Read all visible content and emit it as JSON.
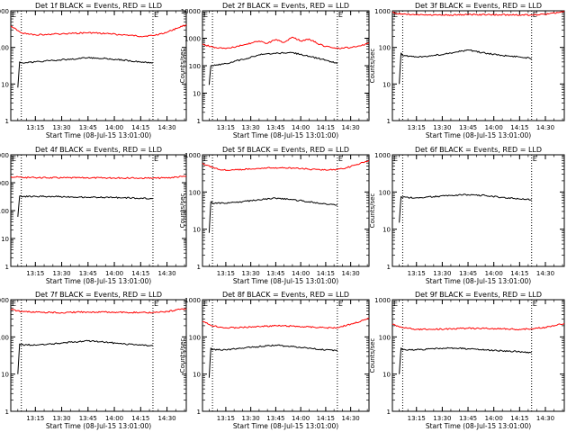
{
  "figure": {
    "panels": [
      {
        "title": "Det 1f BLACK = Events, RED = LLD",
        "ylabel": "Counts/sec",
        "xlabel": "Start Time (08-Jul-15 13:01:00)",
        "corner_marks": [
          "E",
          "E"
        ]
      },
      {
        "title": "Det 2f BLACK = Events, RED = LLD",
        "ylabel": "Counts/sec",
        "xlabel": "Start Time (08-Jul-15 13:01:00)",
        "corner_marks": [
          "E",
          "E"
        ]
      },
      {
        "title": "Det 3f BLACK = Events, RED = LLD",
        "ylabel": "Counts/sec",
        "xlabel": "Start Time (08-Jul-15 13:01:00)",
        "corner_marks": [
          "E",
          "E"
        ]
      },
      {
        "title": "Det 4f BLACK = Events, RED = LLD",
        "ylabel": "Counts/sec",
        "xlabel": "Start Time (08-Jul-15 13:01:00)",
        "corner_marks": [
          "E",
          "E"
        ]
      },
      {
        "title": "Det 5f BLACK = Events, RED = LLD",
        "ylabel": "Counts/sec",
        "xlabel": "Start Time (08-Jul-15 13:01:00)",
        "corner_marks": [
          "E",
          "E"
        ]
      },
      {
        "title": "Det 6f BLACK = Events, RED = LLD",
        "ylabel": "Counts/sec",
        "xlabel": "Start Time (08-Jul-15 13:01:00)",
        "corner_marks": [
          "E",
          "E"
        ]
      },
      {
        "title": "Det 7f BLACK = Events, RED = LLD",
        "ylabel": "Counts/sec",
        "xlabel": "Start Time (08-Jul-15 13:01:00)",
        "corner_marks": [
          "E",
          "E"
        ]
      },
      {
        "title": "Det 8f BLACK = Events, RED = LLD",
        "ylabel": "Counts/sec",
        "xlabel": "Start Time (08-Jul-15 13:01:00)",
        "corner_marks": [
          "E",
          "E"
        ]
      },
      {
        "title": "Det 9f BLACK = Events, RED = LLD",
        "ylabel": "Counts/sec",
        "xlabel": "Start Time (08-Jul-15 13:01:00)",
        "corner_marks": [
          "E",
          "E"
        ]
      }
    ]
  },
  "chart_data": [
    {
      "type": "line",
      "title": "Det 1f BLACK = Events, RED = LLD",
      "ylabel": "Counts/sec",
      "xlabel": "Start Time (08-Jul-15 13:01:00)",
      "yscale": "log",
      "ylim": [
        1,
        1000
      ],
      "xlim": [
        "13:01",
        "14:41"
      ],
      "yticks": [
        "1",
        "10",
        "100",
        "1000"
      ],
      "xticks": [
        "13:15",
        "13:30",
        "13:45",
        "14:00",
        "14:15",
        "14:30"
      ],
      "vlines": [
        "13:07",
        "14:22"
      ],
      "series": [
        {
          "color": "#ff0000",
          "x": [
            "13:01",
            "13:07",
            "13:15",
            "13:25",
            "13:35",
            "13:45",
            "13:55",
            "14:05",
            "14:15",
            "14:22",
            "14:30",
            "14:41"
          ],
          "y": [
            380,
            250,
            220,
            230,
            240,
            250,
            240,
            220,
            200,
            210,
            260,
            420
          ]
        },
        {
          "color": "#000000",
          "x": [
            "13:05",
            "13:06",
            "13:07",
            "13:15",
            "13:25",
            "13:35",
            "13:45",
            "13:55",
            "14:05",
            "14:15",
            "14:22"
          ],
          "y": [
            8,
            40,
            38,
            40,
            44,
            48,
            52,
            50,
            45,
            40,
            38
          ]
        }
      ]
    },
    {
      "type": "line",
      "title": "Det 2f BLACK = Events, RED = LLD",
      "ylabel": "Counts/sec",
      "xlabel": "Start Time (08-Jul-15 13:01:00)",
      "yscale": "log",
      "ylim": [
        1,
        10000
      ],
      "xlim": [
        "13:01",
        "14:41"
      ],
      "yticks": [
        "1",
        "10",
        "100",
        "1000",
        "10000"
      ],
      "xticks": [
        "13:15",
        "13:30",
        "13:45",
        "14:00",
        "14:15",
        "14:30"
      ],
      "vlines": [
        "13:07",
        "14:22"
      ],
      "series": [
        {
          "color": "#ff0000",
          "x": [
            "13:01",
            "13:07",
            "13:15",
            "13:25",
            "13:35",
            "13:40",
            "13:45",
            "13:50",
            "13:55",
            "14:00",
            "14:05",
            "14:10",
            "14:15",
            "14:22",
            "14:30",
            "14:41"
          ],
          "y": [
            600,
            480,
            420,
            550,
            800,
            650,
            900,
            700,
            1100,
            800,
            950,
            650,
            500,
            430,
            460,
            650
          ]
        },
        {
          "color": "#000000",
          "x": [
            "13:05",
            "13:06",
            "13:07",
            "13:15",
            "13:25",
            "13:35",
            "13:45",
            "13:55",
            "14:05",
            "14:15",
            "14:22"
          ],
          "y": [
            20,
            100,
            100,
            120,
            170,
            250,
            280,
            300,
            220,
            160,
            120
          ]
        }
      ]
    },
    {
      "type": "line",
      "title": "Det 3f BLACK = Events, RED = LLD",
      "ylabel": "Counts/sec",
      "xlabel": "Start Time (08-Jul-15 13:01:00)",
      "yscale": "log",
      "ylim": [
        1,
        1000
      ],
      "xlim": [
        "13:01",
        "14:41"
      ],
      "yticks": [
        "1",
        "10",
        "100",
        "1000"
      ],
      "xticks": [
        "13:15",
        "13:30",
        "13:45",
        "14:00",
        "14:15",
        "14:30"
      ],
      "vlines": [
        "13:07",
        "14:22"
      ],
      "series": [
        {
          "color": "#ff0000",
          "x": [
            "13:01",
            "13:07",
            "13:15",
            "13:30",
            "13:45",
            "14:00",
            "14:15",
            "14:22",
            "14:30",
            "14:41"
          ],
          "y": [
            900,
            800,
            780,
            760,
            790,
            780,
            770,
            760,
            800,
            950
          ]
        },
        {
          "color": "#000000",
          "x": [
            "13:05",
            "13:06",
            "13:07",
            "13:15",
            "13:25",
            "13:35",
            "13:45",
            "13:55",
            "14:05",
            "14:15",
            "14:22"
          ],
          "y": [
            10,
            70,
            60,
            55,
            60,
            70,
            85,
            70,
            60,
            55,
            50
          ]
        }
      ]
    },
    {
      "type": "line",
      "title": "Det 4f BLACK = Events, RED = LLD",
      "ylabel": "Counts/sec",
      "xlabel": "Start Time (08-Jul-15 13:01:00)",
      "yscale": "log",
      "ylim": [
        1,
        10000
      ],
      "xlim": [
        "13:01",
        "14:41"
      ],
      "yticks": [
        "1",
        "10",
        "100",
        "1000",
        "10000"
      ],
      "xticks": [
        "13:15",
        "13:30",
        "13:45",
        "14:00",
        "14:15",
        "14:30"
      ],
      "vlines": [
        "13:07",
        "14:22"
      ],
      "series": [
        {
          "color": "#ff0000",
          "x": [
            "13:01",
            "13:07",
            "13:15",
            "13:30",
            "13:45",
            "14:00",
            "14:15",
            "14:22",
            "14:30",
            "14:41"
          ],
          "y": [
            1650,
            1550,
            1520,
            1500,
            1500,
            1480,
            1460,
            1450,
            1500,
            1700
          ]
        },
        {
          "color": "#000000",
          "x": [
            "13:05",
            "13:06",
            "13:07",
            "13:15",
            "13:25",
            "13:35",
            "13:45",
            "13:55",
            "14:05",
            "14:15",
            "14:22"
          ],
          "y": [
            60,
            330,
            320,
            320,
            320,
            310,
            300,
            300,
            290,
            280,
            270
          ]
        }
      ]
    },
    {
      "type": "line",
      "title": "Det 5f BLACK = Events, RED = LLD",
      "ylabel": "Counts/sec",
      "xlabel": "Start Time (08-Jul-15 13:01:00)",
      "yscale": "log",
      "ylim": [
        1,
        1000
      ],
      "xlim": [
        "13:01",
        "14:41"
      ],
      "yticks": [
        "1",
        "10",
        "100",
        "1000"
      ],
      "xticks": [
        "13:15",
        "13:30",
        "13:45",
        "14:00",
        "14:15",
        "14:30"
      ],
      "vlines": [
        "13:07",
        "14:22"
      ],
      "series": [
        {
          "color": "#ff0000",
          "x": [
            "13:01",
            "13:07",
            "13:15",
            "13:25",
            "13:35",
            "13:45",
            "13:55",
            "14:05",
            "14:15",
            "14:22",
            "14:30",
            "14:41"
          ],
          "y": [
            600,
            450,
            380,
            400,
            430,
            450,
            440,
            410,
            390,
            400,
            480,
            700
          ]
        },
        {
          "color": "#000000",
          "x": [
            "13:05",
            "13:06",
            "13:07",
            "13:15",
            "13:25",
            "13:35",
            "13:45",
            "13:55",
            "14:05",
            "14:15",
            "14:22"
          ],
          "y": [
            8,
            55,
            50,
            50,
            55,
            62,
            68,
            62,
            55,
            48,
            45
          ]
        }
      ]
    },
    {
      "type": "line",
      "title": "Det 6f BLACK = Events, RED = LLD",
      "ylabel": "Counts/sec",
      "xlabel": "Start Time (08-Jul-15 13:01:00)",
      "yscale": "log",
      "ylim": [
        1,
        1000
      ],
      "xlim": [
        "13:01",
        "14:41"
      ],
      "yticks": [
        "1",
        "10",
        "100",
        "1000"
      ],
      "xticks": [
        "13:15",
        "13:30",
        "13:45",
        "14:00",
        "14:15",
        "14:30"
      ],
      "vlines": [
        "13:07",
        "14:22"
      ],
      "series": [
        {
          "color": "#000000",
          "x": [
            "13:05",
            "13:06",
            "13:07",
            "13:15",
            "13:25",
            "13:35",
            "13:45",
            "13:55",
            "14:05",
            "14:15",
            "14:22"
          ],
          "y": [
            15,
            75,
            72,
            70,
            75,
            80,
            85,
            80,
            72,
            65,
            62
          ]
        }
      ]
    },
    {
      "type": "line",
      "title": "Det 7f BLACK = Events, RED = LLD",
      "ylabel": "Counts/sec",
      "xlabel": "Start Time (08-Jul-15 13:01:00)",
      "yscale": "log",
      "ylim": [
        1,
        1000
      ],
      "xlim": [
        "13:01",
        "14:41"
      ],
      "yticks": [
        "1",
        "10",
        "100",
        "1000"
      ],
      "xticks": [
        "13:15",
        "13:30",
        "13:45",
        "14:00",
        "14:15",
        "14:30"
      ],
      "vlines": [
        "13:07",
        "14:22"
      ],
      "series": [
        {
          "color": "#ff0000",
          "x": [
            "13:01",
            "13:07",
            "13:15",
            "13:30",
            "13:45",
            "14:00",
            "14:15",
            "14:22",
            "14:30",
            "14:41"
          ],
          "y": [
            550,
            480,
            460,
            450,
            470,
            460,
            450,
            450,
            480,
            580
          ]
        },
        {
          "color": "#000000",
          "x": [
            "13:05",
            "13:06",
            "13:07",
            "13:15",
            "13:25",
            "13:35",
            "13:45",
            "13:55",
            "14:05",
            "14:15",
            "14:22"
          ],
          "y": [
            10,
            65,
            62,
            60,
            65,
            72,
            78,
            72,
            65,
            60,
            58
          ]
        }
      ]
    },
    {
      "type": "line",
      "title": "Det 8f BLACK = Events, RED = LLD",
      "ylabel": "Counts/sec",
      "xlabel": "Start Time (08-Jul-15 13:01:00)",
      "yscale": "log",
      "ylim": [
        1,
        1000
      ],
      "xlim": [
        "13:01",
        "14:41"
      ],
      "yticks": [
        "1",
        "10",
        "100",
        "1000"
      ],
      "xticks": [
        "13:15",
        "13:30",
        "13:45",
        "14:00",
        "14:15",
        "14:30"
      ],
      "vlines": [
        "13:07",
        "14:22"
      ],
      "series": [
        {
          "color": "#ff0000",
          "x": [
            "13:01",
            "13:07",
            "13:15",
            "13:25",
            "13:35",
            "13:45",
            "13:55",
            "14:05",
            "14:15",
            "14:22",
            "14:30",
            "14:41"
          ],
          "y": [
            260,
            200,
            175,
            180,
            190,
            200,
            195,
            185,
            175,
            180,
            220,
            310
          ]
        },
        {
          "color": "#000000",
          "x": [
            "13:05",
            "13:06",
            "13:07",
            "13:15",
            "13:25",
            "13:35",
            "13:45",
            "13:55",
            "14:05",
            "14:15",
            "14:22"
          ],
          "y": [
            8,
            50,
            45,
            45,
            50,
            55,
            60,
            55,
            50,
            45,
            42
          ]
        }
      ]
    },
    {
      "type": "line",
      "title": "Det 9f BLACK = Events, RED = LLD",
      "ylabel": "Counts/sec",
      "xlabel": "Start Time (08-Jul-15 13:01:00)",
      "yscale": "log",
      "ylim": [
        1,
        1000
      ],
      "xlim": [
        "13:01",
        "14:41"
      ],
      "yticks": [
        "1",
        "10",
        "100",
        "1000"
      ],
      "xticks": [
        "13:15",
        "13:30",
        "13:45",
        "14:00",
        "14:15",
        "14:30"
      ],
      "vlines": [
        "13:07",
        "14:22"
      ],
      "series": [
        {
          "color": "#ff0000",
          "x": [
            "13:01",
            "13:07",
            "13:15",
            "13:25",
            "13:35",
            "13:45",
            "13:55",
            "14:05",
            "14:15",
            "14:22",
            "14:30",
            "14:41"
          ],
          "y": [
            220,
            180,
            160,
            160,
            165,
            170,
            170,
            165,
            160,
            165,
            180,
            230
          ]
        },
        {
          "color": "#000000",
          "x": [
            "13:05",
            "13:06",
            "13:07",
            "13:15",
            "13:25",
            "13:35",
            "13:45",
            "13:55",
            "14:05",
            "14:15",
            "14:22"
          ],
          "y": [
            10,
            50,
            45,
            45,
            48,
            50,
            48,
            45,
            42,
            40,
            38
          ]
        }
      ]
    }
  ]
}
